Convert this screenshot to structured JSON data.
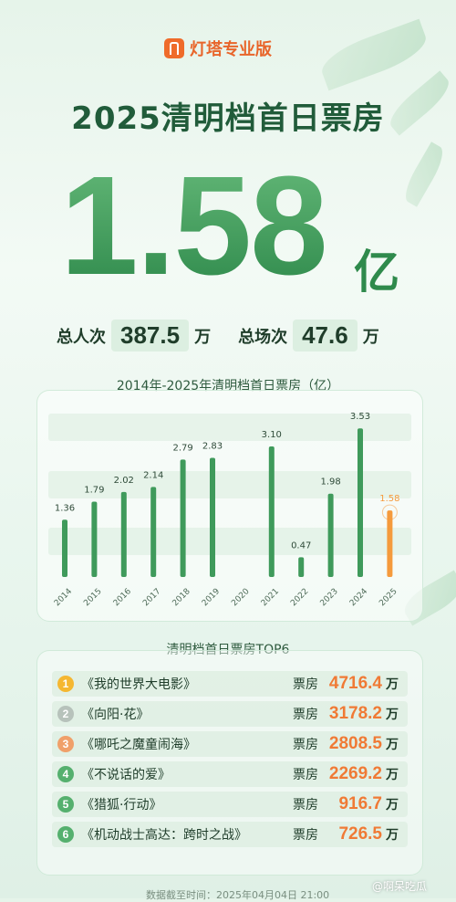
{
  "brand": {
    "name": "灯塔专业版",
    "color": "#ef6b2a"
  },
  "headline": "2025清明档首日票房",
  "total": {
    "value": "1.58",
    "unit": "亿"
  },
  "stats": {
    "admissions_label": "总人次",
    "admissions_value": "387.5",
    "admissions_unit": "万",
    "shows_label": "总场次",
    "shows_value": "47.6",
    "shows_unit": "万"
  },
  "chart_data": {
    "type": "bar",
    "title": "2014年-2025年清明档首日票房（亿）",
    "categories": [
      "2014",
      "2015",
      "2016",
      "2017",
      "2018",
      "2019",
      "2020",
      "2021",
      "2022",
      "2023",
      "2024",
      "2025"
    ],
    "values": [
      1.36,
      1.79,
      2.02,
      2.14,
      2.79,
      2.83,
      null,
      3.1,
      0.47,
      1.98,
      3.53,
      1.58
    ],
    "labels": [
      "1.36",
      "1.79",
      "2.02",
      "2.14",
      "2.79",
      "2.83",
      "",
      "3.10",
      "0.47",
      "1.98",
      "3.53",
      "1.58"
    ],
    "ylim": [
      0,
      3.6
    ],
    "colors": {
      "bar": "#3f9a5b",
      "highlight": "#f59a3c"
    },
    "highlight_index": 11
  },
  "top": {
    "title": "清明档首日票房TOP6",
    "box_office_label": "票房",
    "unit": "万",
    "items": [
      {
        "rank": "1",
        "title": "《我的世界大电影》",
        "value": "4716.4",
        "color": "#f5b731"
      },
      {
        "rank": "2",
        "title": "《向阳·花》",
        "value": "3178.2",
        "color": "#b7c2bb"
      },
      {
        "rank": "3",
        "title": "《哪吒之魔童闹海》",
        "value": "2808.5",
        "color": "#f0a06a"
      },
      {
        "rank": "4",
        "title": "《不说话的爱》",
        "value": "2269.2",
        "color": "#55b06e"
      },
      {
        "rank": "5",
        "title": "《猎狐·行动》",
        "value": "916.7",
        "color": "#55b06e"
      },
      {
        "rank": "6",
        "title": "《机动战士高达：跨时之战》",
        "value": "726.5",
        "color": "#55b06e"
      }
    ]
  },
  "footer": "数据截至时间：2025年04月04日 21:00",
  "watermark": "@啊呆吃瓜"
}
